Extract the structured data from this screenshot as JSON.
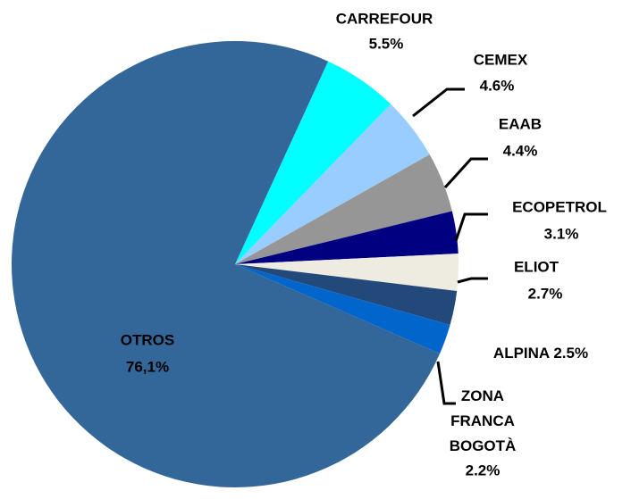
{
  "chart_data": {
    "type": "pie",
    "categories": [
      "CARREFOUR",
      "CEMEX",
      "EAAB",
      "ECOPETROL",
      "ELIOT",
      "ALPINA",
      "ZONA FRANCA BOGOTÀ",
      "OTROS"
    ],
    "values": [
      5.5,
      4.6,
      4.4,
      3.1,
      2.7,
      2.5,
      2.2,
      76.1
    ],
    "value_labels": [
      "5.5%",
      "4.6%",
      "4.4%",
      "3.1%",
      "2.7%",
      "2.5%",
      "2.2%",
      "76,1%"
    ],
    "colors": [
      "#00ffff",
      "#99ccff",
      "#969696",
      "#000080",
      "#eeece1",
      "#23487a",
      "#0066cc",
      "#336699"
    ]
  }
}
